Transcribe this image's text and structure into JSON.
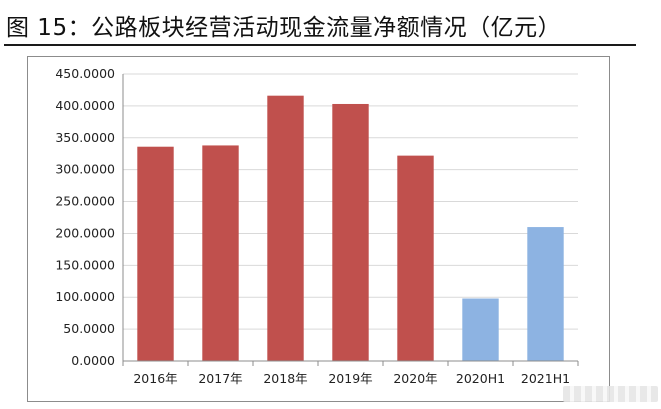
{
  "figure_title": "图 15：公路板块经营活动现金流量净额情况（亿元）",
  "colors": {
    "bar_full_year": "#c0504d",
    "bar_half_year": "#8db3e2",
    "gridline": "#d9d9d9",
    "axis": "#8c8c8c"
  },
  "chart_data": {
    "type": "bar",
    "title": "",
    "xlabel": "",
    "ylabel": "",
    "categories": [
      "2016年",
      "2017年",
      "2018年",
      "2019年",
      "2020年",
      "2020H1",
      "2021H1"
    ],
    "values": [
      336,
      338,
      416,
      403,
      322,
      98,
      210
    ],
    "bar_colors": [
      "#c0504d",
      "#c0504d",
      "#c0504d",
      "#c0504d",
      "#c0504d",
      "#8db3e2",
      "#8db3e2"
    ],
    "ylim": [
      0,
      450
    ],
    "yticks": [
      0,
      50,
      100,
      150,
      200,
      250,
      300,
      350,
      400,
      450
    ],
    "ytick_labels": [
      "0.0000",
      "50.0000",
      "100.0000",
      "150.0000",
      "200.0000",
      "250.0000",
      "300.0000",
      "350.0000",
      "400.0000",
      "450.0000"
    ],
    "grid": true,
    "legend": "none"
  }
}
